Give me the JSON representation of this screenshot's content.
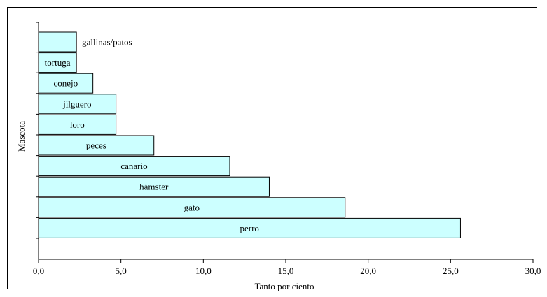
{
  "chart_data": {
    "type": "bar",
    "orientation": "horizontal",
    "xlabel": "Tanto por ciento",
    "ylabel": "Mascota",
    "xlim": [
      0,
      30
    ],
    "x_ticks": [
      "0,0",
      "5,0",
      "10,0",
      "15,0",
      "20,0",
      "25,0",
      "30,0"
    ],
    "grid": false,
    "legend": "none",
    "bar_color": "#ccffff",
    "categories": [
      "gallinas/patos",
      "tortuga",
      "conejo",
      "jilguero",
      "loro",
      "peces",
      "canario",
      "hámster",
      "gato",
      "perro"
    ],
    "values": [
      2.3,
      2.3,
      3.3,
      4.7,
      4.7,
      7.0,
      11.6,
      14.0,
      18.6,
      25.6
    ]
  }
}
